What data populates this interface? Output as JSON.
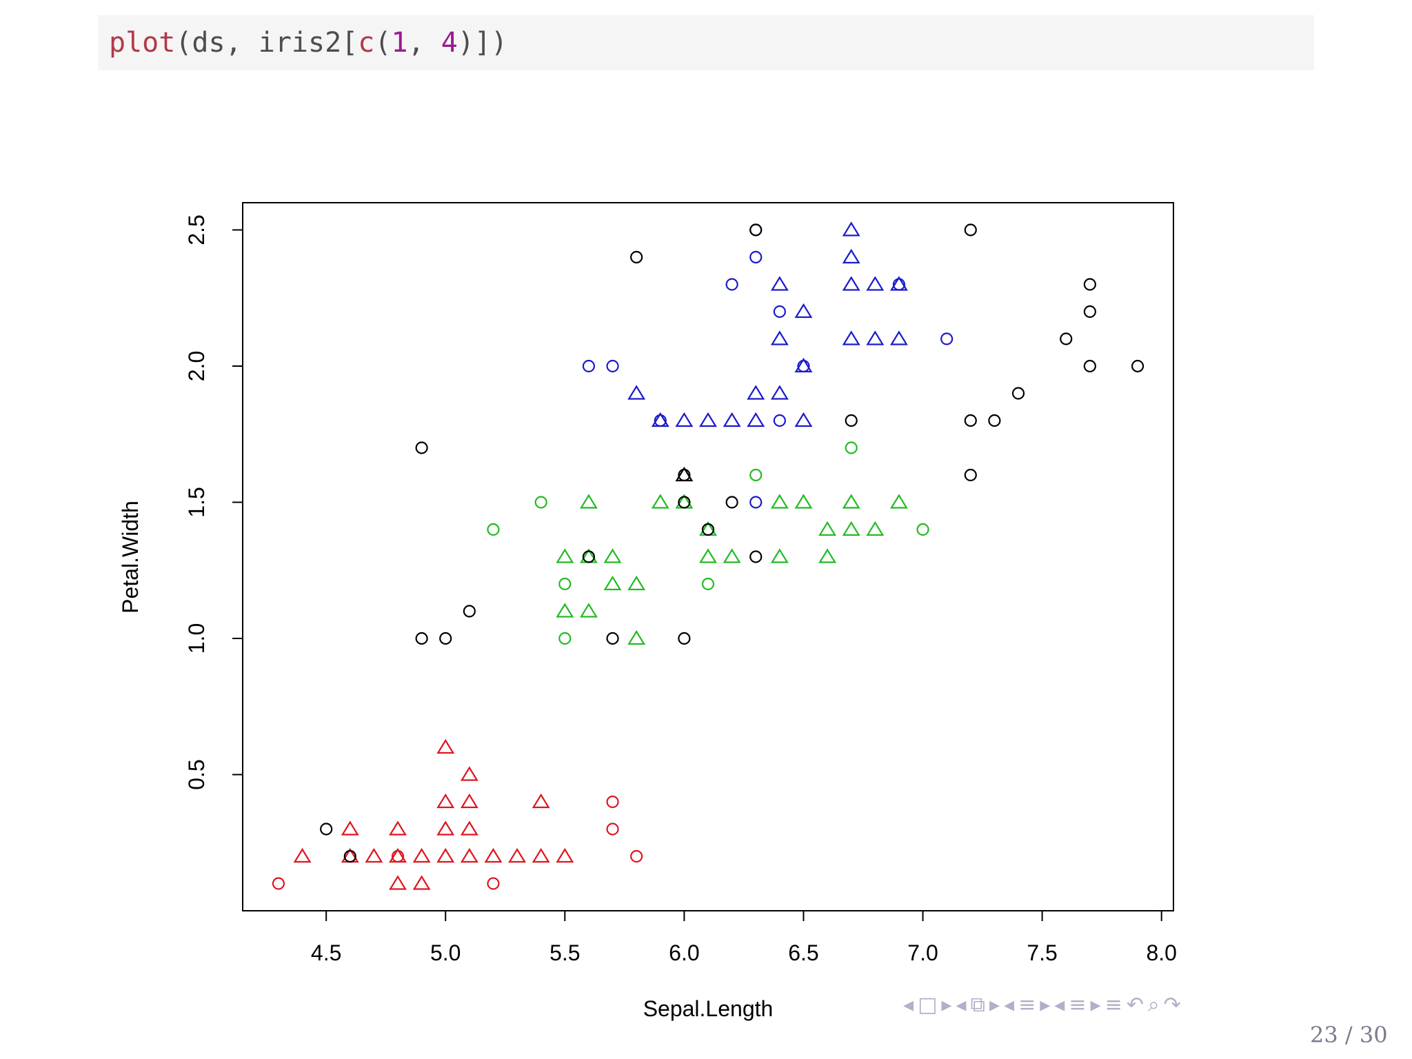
{
  "code": {
    "tokens": [
      {
        "text": "plot",
        "cls": "tok-fn"
      },
      {
        "text": "(ds, iris2[",
        "cls": "tok-plain"
      },
      {
        "text": "c",
        "cls": "tok-fn"
      },
      {
        "text": "(",
        "cls": "tok-plain"
      },
      {
        "text": "1",
        "cls": "tok-num"
      },
      {
        "text": ", ",
        "cls": "tok-plain"
      },
      {
        "text": "4",
        "cls": "tok-num"
      },
      {
        "text": ")])",
        "cls": "tok-plain"
      }
    ]
  },
  "colors": {
    "black": "#000000",
    "red": "#e0141e",
    "green": "#22bb22",
    "blue": "#1a1acc"
  },
  "chart_data": {
    "type": "scatter",
    "xlabel": "Sepal.Length",
    "ylabel": "Petal.Width",
    "xlim": [
      4.15,
      8.05
    ],
    "ylim": [
      0.0,
      2.6
    ],
    "xticks": [
      "4.5",
      "5.0",
      "5.5",
      "6.0",
      "6.5",
      "7.0",
      "7.5",
      "8.0"
    ],
    "yticks": [
      "0.5",
      "1.0",
      "1.5",
      "2.0",
      "2.5"
    ],
    "grid": false,
    "series": [
      {
        "color": "red",
        "marker": "triangle",
        "points": [
          [
            4.4,
            0.2
          ],
          [
            4.6,
            0.3
          ],
          [
            4.6,
            0.2
          ],
          [
            4.7,
            0.2
          ],
          [
            4.8,
            0.3
          ],
          [
            4.8,
            0.2
          ],
          [
            4.8,
            0.1
          ],
          [
            4.9,
            0.2
          ],
          [
            4.9,
            0.1
          ],
          [
            5.0,
            0.6
          ],
          [
            5.0,
            0.4
          ],
          [
            5.0,
            0.3
          ],
          [
            5.0,
            0.2
          ],
          [
            5.1,
            0.5
          ],
          [
            5.1,
            0.4
          ],
          [
            5.1,
            0.3
          ],
          [
            5.1,
            0.2
          ],
          [
            5.2,
            0.2
          ],
          [
            5.3,
            0.2
          ],
          [
            5.4,
            0.4
          ],
          [
            5.4,
            0.2
          ],
          [
            5.5,
            0.2
          ]
        ]
      },
      {
        "color": "red",
        "marker": "circle",
        "points": [
          [
            4.3,
            0.1
          ],
          [
            4.8,
            0.2
          ],
          [
            5.2,
            0.1
          ],
          [
            5.7,
            0.4
          ],
          [
            5.7,
            0.3
          ],
          [
            5.8,
            0.2
          ]
        ]
      },
      {
        "color": "green",
        "marker": "triangle",
        "points": [
          [
            5.5,
            1.3
          ],
          [
            5.5,
            1.1
          ],
          [
            5.6,
            1.5
          ],
          [
            5.6,
            1.3
          ],
          [
            5.6,
            1.1
          ],
          [
            5.7,
            1.3
          ],
          [
            5.7,
            1.2
          ],
          [
            5.8,
            1.2
          ],
          [
            5.8,
            1.0
          ],
          [
            5.9,
            1.5
          ],
          [
            6.0,
            1.5
          ],
          [
            6.1,
            1.4
          ],
          [
            6.1,
            1.3
          ],
          [
            6.2,
            1.3
          ],
          [
            6.4,
            1.5
          ],
          [
            6.4,
            1.3
          ],
          [
            6.5,
            1.5
          ],
          [
            6.6,
            1.4
          ],
          [
            6.6,
            1.3
          ],
          [
            6.7,
            1.5
          ],
          [
            6.7,
            1.4
          ],
          [
            6.8,
            1.4
          ],
          [
            6.9,
            1.5
          ]
        ]
      },
      {
        "color": "green",
        "marker": "circle",
        "points": [
          [
            5.2,
            1.4
          ],
          [
            5.4,
            1.5
          ],
          [
            5.5,
            1.2
          ],
          [
            5.5,
            1.0
          ],
          [
            6.1,
            1.2
          ],
          [
            6.3,
            1.6
          ],
          [
            6.7,
            1.7
          ],
          [
            7.0,
            1.4
          ]
        ]
      },
      {
        "color": "blue",
        "marker": "triangle",
        "points": [
          [
            5.8,
            1.9
          ],
          [
            5.9,
            1.8
          ],
          [
            6.0,
            1.8
          ],
          [
            6.1,
            1.8
          ],
          [
            6.2,
            1.8
          ],
          [
            6.3,
            1.9
          ],
          [
            6.3,
            1.8
          ],
          [
            6.4,
            2.3
          ],
          [
            6.4,
            2.1
          ],
          [
            6.4,
            1.9
          ],
          [
            6.5,
            2.2
          ],
          [
            6.5,
            2.0
          ],
          [
            6.5,
            1.8
          ],
          [
            6.7,
            2.5
          ],
          [
            6.7,
            2.4
          ],
          [
            6.7,
            2.3
          ],
          [
            6.7,
            2.1
          ],
          [
            6.8,
            2.3
          ],
          [
            6.8,
            2.1
          ],
          [
            6.9,
            2.3
          ],
          [
            6.9,
            2.1
          ]
        ]
      },
      {
        "color": "blue",
        "marker": "circle",
        "points": [
          [
            5.6,
            2.0
          ],
          [
            5.7,
            2.0
          ],
          [
            5.9,
            1.8
          ],
          [
            6.2,
            2.3
          ],
          [
            6.3,
            2.5
          ],
          [
            6.3,
            2.4
          ],
          [
            6.3,
            1.5
          ],
          [
            6.4,
            2.2
          ],
          [
            6.4,
            1.8
          ],
          [
            6.5,
            2.0
          ],
          [
            6.9,
            2.3
          ],
          [
            7.1,
            2.1
          ]
        ]
      },
      {
        "color": "black",
        "marker": "triangle",
        "points": [
          [
            6.0,
            1.6
          ]
        ]
      },
      {
        "color": "black",
        "marker": "circle",
        "points": [
          [
            4.5,
            0.3
          ],
          [
            4.6,
            0.2
          ],
          [
            4.9,
            1.7
          ],
          [
            4.9,
            1.0
          ],
          [
            5.0,
            1.0
          ],
          [
            5.1,
            1.1
          ],
          [
            5.6,
            1.3
          ],
          [
            5.7,
            1.0
          ],
          [
            5.8,
            2.4
          ],
          [
            6.0,
            1.6
          ],
          [
            6.0,
            1.5
          ],
          [
            6.0,
            1.0
          ],
          [
            6.1,
            1.4
          ],
          [
            6.2,
            1.5
          ],
          [
            6.3,
            2.5
          ],
          [
            6.3,
            1.3
          ],
          [
            6.7,
            1.8
          ],
          [
            7.2,
            2.5
          ],
          [
            7.2,
            1.8
          ],
          [
            7.2,
            1.6
          ],
          [
            7.3,
            1.8
          ],
          [
            7.4,
            1.9
          ],
          [
            7.6,
            2.1
          ],
          [
            7.7,
            2.3
          ],
          [
            7.7,
            2.2
          ],
          [
            7.7,
            2.0
          ],
          [
            7.9,
            2.0
          ]
        ]
      }
    ]
  },
  "footer": {
    "nav_icons": [
      "◂",
      "□",
      "▸",
      "◂",
      "⧉",
      "▸",
      "◂",
      "≡",
      "▸",
      "◂",
      "≡",
      "▸",
      "≡",
      "↶",
      "⌕",
      "↷"
    ],
    "page": "23 / 30"
  }
}
